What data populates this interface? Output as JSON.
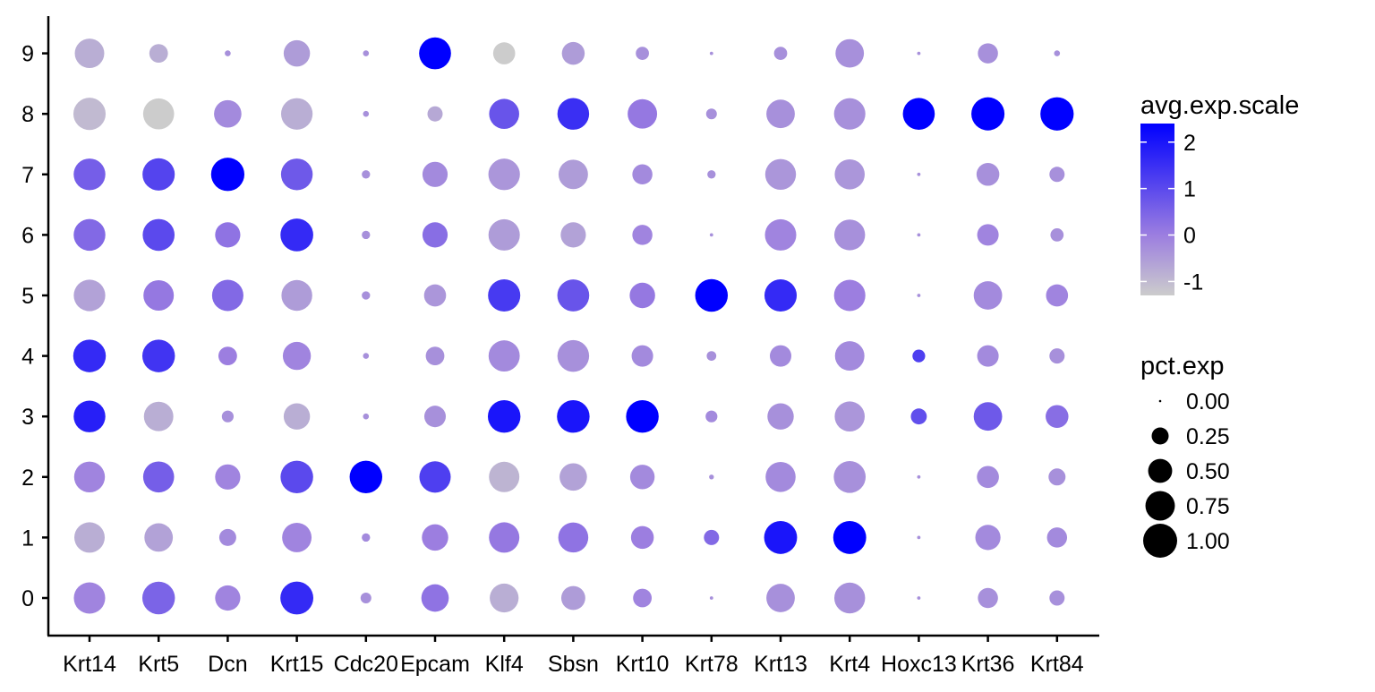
{
  "chart_data": {
    "type": "dot",
    "title": "",
    "xlabel": "",
    "ylabel": "",
    "genes": [
      "Krt14",
      "Krt5",
      "Dcn",
      "Krt15",
      "Cdc20",
      "Epcam",
      "Klf4",
      "Sbsn",
      "Krt10",
      "Krt78",
      "Krt13",
      "Krt4",
      "Hoxc13",
      "Krt36",
      "Krt84"
    ],
    "clusters": [
      "0",
      "1",
      "2",
      "3",
      "4",
      "5",
      "6",
      "7",
      "8",
      "9"
    ],
    "avg_exp_scale": [
      [
        -0.1,
        0.5,
        -0.1,
        1.6,
        -0.3,
        0.2,
        -0.8,
        -0.5,
        -0.1,
        -0.3,
        -0.3,
        -0.3,
        -0.3,
        -0.3,
        -0.3
      ],
      [
        -0.8,
        -0.6,
        -0.2,
        -0.1,
        -0.2,
        0.0,
        0.1,
        0.2,
        0.0,
        0.4,
        2.0,
        2.4,
        -0.3,
        -0.2,
        -0.2
      ],
      [
        -0.1,
        0.6,
        -0.1,
        1.0,
        2.4,
        1.2,
        -0.9,
        -0.6,
        -0.2,
        -0.3,
        -0.2,
        -0.3,
        -0.3,
        -0.2,
        -0.3
      ],
      [
        1.8,
        -0.8,
        -0.3,
        -0.8,
        -0.3,
        -0.3,
        2.0,
        2.0,
        2.4,
        -0.2,
        -0.3,
        -0.4,
        0.9,
        0.7,
        0.3
      ],
      [
        1.6,
        1.4,
        0.0,
        -0.1,
        -0.3,
        -0.3,
        -0.2,
        -0.3,
        -0.2,
        -0.3,
        -0.2,
        -0.2,
        1.2,
        -0.2,
        -0.3
      ],
      [
        -0.6,
        0.1,
        0.4,
        -0.5,
        -0.3,
        -0.4,
        1.3,
        0.8,
        0.1,
        2.4,
        1.6,
        0.0,
        -0.3,
        -0.2,
        -0.1
      ],
      [
        0.4,
        1.0,
        0.2,
        1.6,
        -0.3,
        0.3,
        -0.5,
        -0.6,
        -0.1,
        -0.3,
        -0.1,
        -0.3,
        -0.3,
        -0.1,
        -0.3
      ],
      [
        0.6,
        1.1,
        2.4,
        0.7,
        -0.3,
        -0.2,
        -0.4,
        -0.5,
        -0.2,
        -0.3,
        -0.4,
        -0.4,
        -0.3,
        -0.3,
        -0.3
      ],
      [
        -1.0,
        -1.3,
        -0.2,
        -0.8,
        -0.3,
        -0.7,
        0.8,
        1.5,
        0.1,
        -0.3,
        -0.3,
        -0.3,
        2.4,
        2.4,
        2.4
      ],
      [
        -0.8,
        -0.8,
        -0.3,
        -0.5,
        -0.3,
        2.4,
        -1.3,
        -0.5,
        -0.3,
        -0.3,
        -0.3,
        -0.3,
        -0.3,
        -0.3,
        -0.3
      ]
    ],
    "pct_exp": [
      [
        0.85,
        0.92,
        0.55,
        0.94,
        0.1,
        0.65,
        0.72,
        0.5,
        0.3,
        0.01,
        0.7,
        0.82,
        0.01,
        0.35,
        0.2
      ],
      [
        0.8,
        0.7,
        0.25,
        0.75,
        0.06,
        0.6,
        0.8,
        0.78,
        0.45,
        0.2,
        0.94,
        0.94,
        0.01,
        0.55,
        0.35
      ],
      [
        0.82,
        0.83,
        0.55,
        0.92,
        0.92,
        0.85,
        0.8,
        0.65,
        0.52,
        0.02,
        0.78,
        0.88,
        0.01,
        0.42,
        0.25
      ],
      [
        0.87,
        0.75,
        0.12,
        0.6,
        0.03,
        0.4,
        0.92,
        0.92,
        0.92,
        0.12,
        0.6,
        0.78,
        0.22,
        0.7,
        0.45
      ],
      [
        0.92,
        0.92,
        0.3,
        0.68,
        0.03,
        0.3,
        0.84,
        0.87,
        0.4,
        0.08,
        0.4,
        0.75,
        0.14,
        0.4,
        0.2
      ],
      [
        0.86,
        0.8,
        0.85,
        0.82,
        0.06,
        0.42,
        0.9,
        0.88,
        0.56,
        0.92,
        0.9,
        0.85,
        0.01,
        0.7,
        0.42
      ],
      [
        0.87,
        0.88,
        0.55,
        0.93,
        0.06,
        0.55,
        0.85,
        0.55,
        0.35,
        0.01,
        0.85,
        0.82,
        0.01,
        0.4,
        0.15
      ],
      [
        0.87,
        0.9,
        0.96,
        0.87,
        0.06,
        0.55,
        0.86,
        0.75,
        0.35,
        0.06,
        0.82,
        0.78,
        0.01,
        0.45,
        0.2
      ],
      [
        0.9,
        0.83,
        0.65,
        0.86,
        0.03,
        0.2,
        0.78,
        0.87,
        0.75,
        0.1,
        0.7,
        0.85,
        0.88,
        0.95,
        0.96
      ],
      [
        0.75,
        0.3,
        0.03,
        0.6,
        0.03,
        0.88,
        0.42,
        0.45,
        0.15,
        0.01,
        0.15,
        0.7,
        0.01,
        0.35,
        0.03
      ]
    ],
    "color_scale": {
      "title": "avg.exp.scale",
      "ticks": [
        -1,
        0,
        1,
        2
      ],
      "domain": [
        -1.3,
        2.4
      ],
      "low_color": "#CCCCCC",
      "mid_color": "#9C7EE0",
      "high_color": "#0000FF"
    },
    "size_scale": {
      "title": "pct.exp",
      "ticks": [
        0.0,
        0.25,
        0.5,
        0.75,
        1.0
      ],
      "tick_labels": [
        "0.00",
        "0.25",
        "0.50",
        "0.75",
        "1.00"
      ]
    },
    "legend_placement": "right",
    "grid": false
  }
}
